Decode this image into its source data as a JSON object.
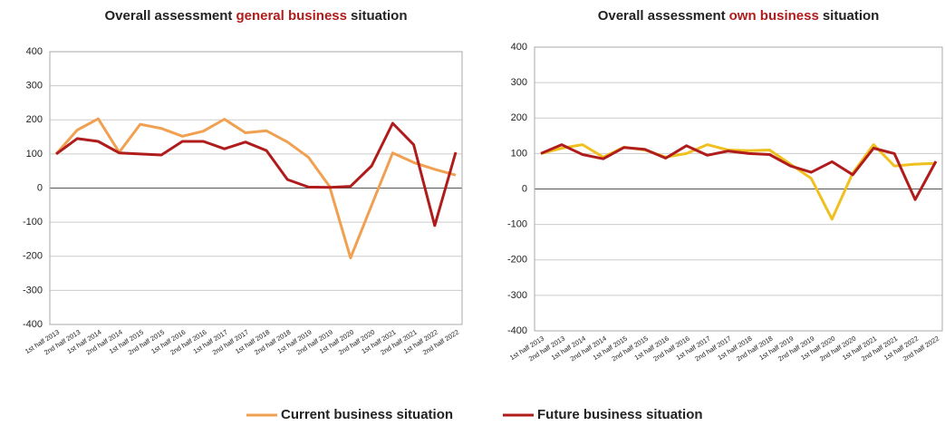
{
  "chart_data": [
    {
      "type": "line",
      "title_parts": [
        "Overall assessment",
        "general business",
        "situation"
      ],
      "title_highlight_color": "#b01c1c",
      "categories": [
        "1st half 2013",
        "2nd half 2013",
        "1st half 2014",
        "2nd half 2014",
        "1st half 2015",
        "2nd half 2015",
        "1st half 2016",
        "2nd half 2016",
        "1st half 2017",
        "2nd half 2017",
        "1st half 2018",
        "2nd half 2018",
        "1st half 2019",
        "2nd half 2019",
        "1st half 2020",
        "2nd half 2020",
        "1st half 2021",
        "2nd half 2021",
        "1st half 2022",
        "2nd half 2022"
      ],
      "series": [
        {
          "name": "Current business situation",
          "color": "#f0a050",
          "values": [
            100,
            170,
            203,
            105,
            187,
            175,
            152,
            167,
            202,
            162,
            168,
            135,
            90,
            5,
            -205,
            -50,
            103,
            75,
            55,
            38
          ]
        },
        {
          "name": "Future business situation",
          "color": "#b01c1c",
          "values": [
            100,
            145,
            137,
            103,
            100,
            97,
            137,
            137,
            115,
            135,
            110,
            25,
            3,
            2,
            5,
            65,
            190,
            127,
            -110,
            105
          ]
        }
      ],
      "ylim": [
        -400,
        400
      ],
      "yticks": [
        -400,
        -300,
        -200,
        -100,
        0,
        100,
        200,
        300,
        400
      ],
      "grid": true
    },
    {
      "type": "line",
      "title_parts": [
        "Overall assessment",
        "own business",
        "situation"
      ],
      "title_highlight_color": "#b01c1c",
      "categories": [
        "1st half 2013",
        "2nd half 2013",
        "1st half 2014",
        "2nd half 2014",
        "1st half 2015",
        "2nd half 2015",
        "1st half 2016",
        "2nd half 2016",
        "1st half 2017",
        "2nd half 2017",
        "1st half 2018",
        "2nd half 2018",
        "1st half 2019",
        "2nd half 2019",
        "1st half 2020",
        "2nd half 2020",
        "1st half 2021",
        "2nd half 2021",
        "1st half 2022",
        "2nd half 2022"
      ],
      "series": [
        {
          "name": "Current business situation",
          "color": "#f0c020",
          "values": [
            100,
            115,
            125,
            90,
            118,
            110,
            90,
            100,
            125,
            110,
            108,
            110,
            70,
            30,
            -85,
            45,
            125,
            65,
            70,
            72
          ]
        },
        {
          "name": "Future business situation",
          "color": "#b01c1c",
          "values": [
            100,
            125,
            97,
            85,
            117,
            112,
            87,
            122,
            95,
            107,
            100,
            97,
            65,
            47,
            77,
            40,
            115,
            100,
            -30,
            78
          ]
        }
      ],
      "ylim": [
        -400,
        400
      ],
      "yticks": [
        -400,
        -300,
        -200,
        -100,
        0,
        100,
        200,
        300,
        400
      ],
      "grid": true
    }
  ]
}
